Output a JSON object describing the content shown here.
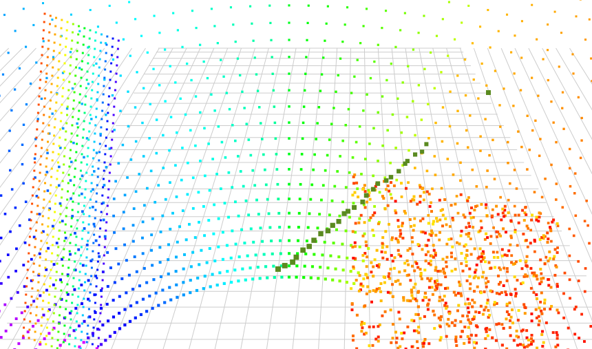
{
  "view": {
    "background_color": "#ffffff",
    "grid_color": "#cccccc",
    "marker_color": "#5a8a20"
  },
  "point_cloud": {
    "colormap": [
      "#ff00ff",
      "#0000ff",
      "#00ffff",
      "#00ff00",
      "#ffff00",
      "#ff8000",
      "#ff0000"
    ],
    "scan_rings": 40,
    "points_per_ring": 95
  },
  "markers": {
    "count": 26
  }
}
